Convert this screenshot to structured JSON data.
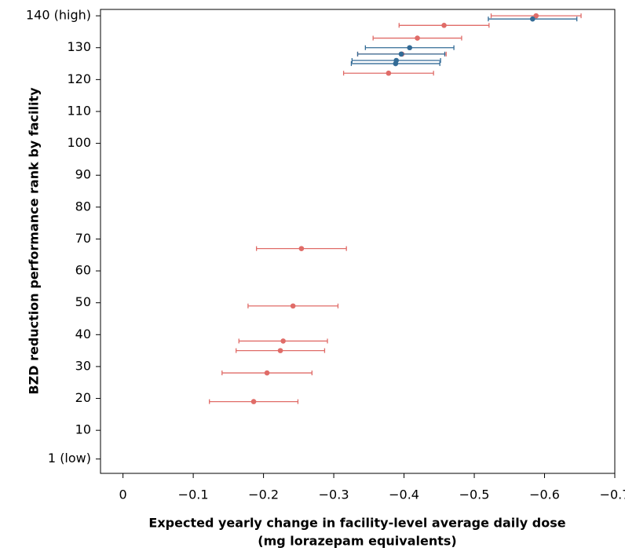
{
  "chart_data": {
    "type": "errorbar",
    "xlabel": [
      "Expected yearly change in facility-level average daily dose",
      "(mg lorazepam equivalents)"
    ],
    "ylabel": "BZD reduction performance rank by facility",
    "xlim": [
      0.032,
      -0.7
    ],
    "ylim": [
      -3.5,
      142
    ],
    "xticks": [
      0,
      {
        "value": -0.1,
        "label": "−0.1"
      },
      {
        "value": -0.2,
        "label": "−0.2"
      },
      {
        "value": -0.3,
        "label": "−0.3"
      },
      {
        "value": -0.4,
        "label": "−0.4"
      },
      {
        "value": -0.5,
        "label": "−0.5"
      },
      {
        "value": -0.6,
        "label": "−0.6"
      },
      {
        "value": -0.7,
        "label": "−0.7"
      }
    ],
    "yticks": [
      {
        "value": 1,
        "label": "1 (low)"
      },
      10,
      20,
      30,
      40,
      50,
      60,
      70,
      80,
      90,
      100,
      110,
      120,
      130,
      {
        "value": 140,
        "label": "140 (high)"
      }
    ],
    "series": [
      {
        "color": "#e06c68",
        "x": [
          -0.186,
          -0.205,
          -0.224,
          -0.228,
          -0.242,
          -0.254,
          -0.378,
          -0.397,
          -0.419,
          -0.457,
          -0.588
        ],
        "values": [
          19,
          28,
          35,
          38,
          49,
          67,
          122,
          128,
          133,
          137,
          140
        ],
        "xerr": [
          0.063,
          0.064,
          0.063,
          0.063,
          0.064,
          0.064,
          0.064,
          0.063,
          0.063,
          0.064,
          0.064
        ]
      },
      {
        "color": "#336b96",
        "x": [
          -0.388,
          -0.389,
          -0.396,
          -0.408,
          -0.583
        ],
        "values": [
          125,
          126,
          128,
          130,
          139
        ],
        "xerr": [
          0.063,
          0.063,
          0.062,
          0.063,
          0.063
        ]
      }
    ]
  }
}
